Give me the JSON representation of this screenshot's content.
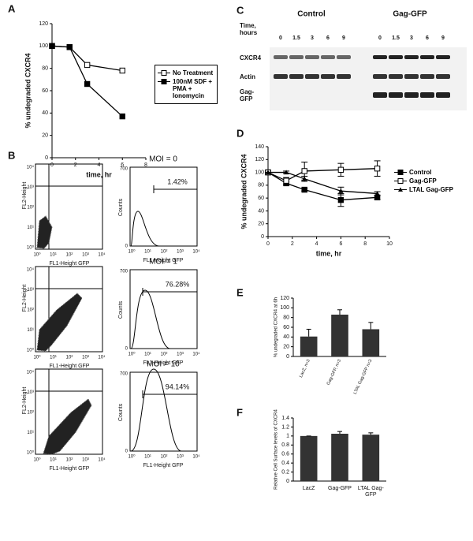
{
  "panel_labels": [
    "A",
    "B",
    "C",
    "D",
    "E",
    "F"
  ],
  "chart_data": [
    {
      "type": "line",
      "x_label": "time, hr",
      "y_label": "% undegraded CXCR4",
      "x": [
        0,
        1.5,
        3,
        6
      ],
      "xlim": [
        0,
        8
      ],
      "xticks": [
        0,
        2,
        4,
        6,
        8
      ],
      "ylim": [
        0,
        120
      ],
      "yticks": [
        0,
        20,
        40,
        60,
        80,
        100,
        120
      ],
      "series": [
        {
          "name": "No Treatment",
          "color": "#000000",
          "marker": "open-square",
          "values": [
            100,
            99,
            83,
            78
          ]
        },
        {
          "name": "100nM SDF + PMA + Ionomycin",
          "color": "#000000",
          "marker": "filled-square",
          "values": [
            100,
            99,
            66,
            37
          ]
        }
      ]
    },
    {
      "type": "line",
      "x_label": "time, hr",
      "y_label": "% undegraded CXCR4",
      "x": [
        0,
        1.5,
        3,
        6,
        9
      ],
      "xlim": [
        0,
        10
      ],
      "xticks": [
        0,
        2,
        4,
        6,
        8,
        10
      ],
      "ylim": [
        0,
        140
      ],
      "yticks": [
        0,
        20,
        40,
        60,
        80,
        100,
        120,
        140
      ],
      "series": [
        {
          "name": "Control",
          "color": "#000000",
          "marker": "filled-square",
          "values": [
            100,
            83,
            73,
            57,
            61
          ],
          "errors": [
            2,
            3,
            2,
            10,
            3
          ]
        },
        {
          "name": "Gag-GFP",
          "color": "#000000",
          "marker": "open-square",
          "values": [
            100,
            87,
            102,
            104,
            106
          ],
          "errors": [
            0,
            5,
            14,
            10,
            12
          ]
        },
        {
          "name": "LTAL Gag-GFP",
          "color": "#000000",
          "marker": "filled-triangle",
          "values": [
            100,
            100,
            90,
            71,
            67
          ],
          "errors": [
            0,
            2,
            4,
            6,
            3
          ]
        }
      ]
    },
    {
      "type": "bar",
      "y_label": "% undegraded CXCR4 at 6h",
      "color": "#333333",
      "categories": [
        "LacZ, n=3",
        "Gag-GFP, n=3",
        "LTAL Gag-GFP n=3"
      ],
      "values": [
        41,
        86,
        56
      ],
      "errors": [
        15,
        10,
        14
      ],
      "ylim": [
        0,
        120
      ],
      "yticks": [
        0,
        20,
        40,
        60,
        80,
        100,
        120
      ]
    },
    {
      "type": "bar",
      "y_label": "Relative Cell Surface levels of CXCR4",
      "color": "#333333",
      "categories": [
        "LacZ",
        "Gag-GFP",
        "LTAL Gag-GFP"
      ],
      "values": [
        1,
        1.05,
        1.03
      ],
      "errors": [
        0,
        0.05,
        0.04
      ],
      "ylim": [
        0,
        1.4
      ],
      "yticks": [
        0,
        0.2,
        0.4,
        0.6,
        0.8,
        1,
        1.2,
        1.4
      ]
    }
  ],
  "flow": {
    "y_axis": "FL2-Height",
    "x_axis": "FL1-Height GFP",
    "log_ticks": [
      "10⁰",
      "10¹",
      "10²",
      "10³",
      "10⁴"
    ],
    "hist_y_axis": "Counts",
    "hist_y_ticks": [
      "0",
      "700"
    ],
    "rows": [
      {
        "title": "MOI = 0",
        "gate": "1.42%"
      },
      {
        "title": "MOI = 1",
        "gate": "76.28%"
      },
      {
        "title": "MOI = 10",
        "gate": "94.14%"
      }
    ]
  },
  "blot": {
    "groups": [
      "Control",
      "Gag-GFP"
    ],
    "time_label": "Time, hours",
    "times": [
      "0",
      "1.5",
      "3",
      "6",
      "9"
    ],
    "rows": [
      "CXCR4",
      "Actin",
      "Gag-GFP"
    ]
  }
}
